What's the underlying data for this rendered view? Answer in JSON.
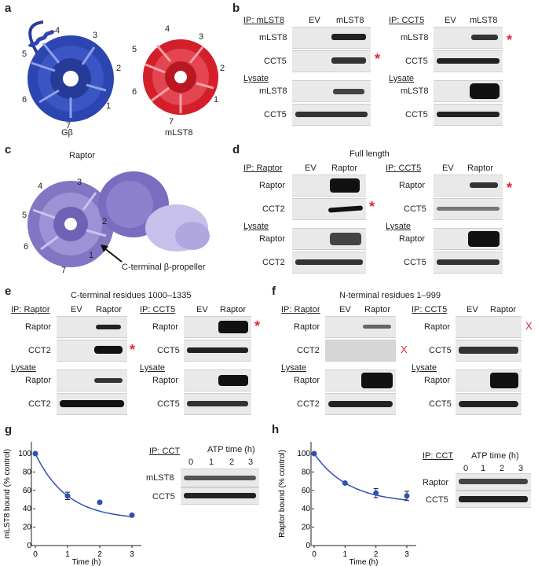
{
  "panels": {
    "a": "a",
    "b": "b",
    "c": "c",
    "d": "d",
    "e": "e",
    "f": "f",
    "g": "g",
    "h": "h"
  },
  "structure_a": {
    "left_label": "Gβ",
    "right_label": "mLST8",
    "left_numbers": [
      "4",
      "3",
      "5",
      "2",
      "6",
      "1",
      "7"
    ],
    "right_numbers": [
      "4",
      "3",
      "5",
      "2",
      "6",
      "1",
      "7"
    ]
  },
  "structure_c": {
    "title": "Raptor",
    "numbers": [
      "4",
      "3",
      "5",
      "2",
      "6",
      "1",
      "7"
    ],
    "arrow_label": "C-terminal β-propeller"
  },
  "panel_b": {
    "left": {
      "ip": "IP: mLST8",
      "lanes": [
        "EV",
        "mLST8"
      ],
      "rows": [
        "mLST8",
        "CCT5"
      ],
      "lysate": "Lysate",
      "lysate_rows": [
        "mLST8",
        "CCT5"
      ]
    },
    "right": {
      "ip": "IP: CCT5",
      "lanes": [
        "EV",
        "mLST8"
      ],
      "rows": [
        "mLST8",
        "CCT5"
      ],
      "lysate": "Lysate",
      "lysate_rows": [
        "mLST8",
        "CCT5"
      ]
    }
  },
  "panel_d": {
    "title": "Full length",
    "left": {
      "ip": "IP: Raptor",
      "lanes": [
        "EV",
        "Raptor"
      ],
      "rows": [
        "Raptor",
        "CCT2"
      ],
      "lysate": "Lysate",
      "lysate_rows": [
        "Raptor",
        "CCT2"
      ]
    },
    "right": {
      "ip": "IP: CCT5",
      "lanes": [
        "EV",
        "Raptor"
      ],
      "rows": [
        "Raptor",
        "CCT5"
      ],
      "lysate": "Lysate",
      "lysate_rows": [
        "Raptor",
        "CCT5"
      ]
    }
  },
  "panel_e": {
    "title": "C-terminal residues 1000–1335",
    "left": {
      "ip": "IP: Raptor",
      "lanes": [
        "EV",
        "Raptor"
      ],
      "rows": [
        "Raptor",
        "CCT2"
      ],
      "lysate": "Lysate",
      "lysate_rows": [
        "Raptor",
        "CCT2"
      ]
    },
    "right": {
      "ip": "IP: CCT5",
      "lanes": [
        "EV",
        "Raptor"
      ],
      "rows": [
        "Raptor",
        "CCT5"
      ],
      "lysate": "Lysate",
      "lysate_rows": [
        "Raptor",
        "CCT5"
      ]
    }
  },
  "panel_f": {
    "title": "N-terminal residues 1–999",
    "left": {
      "ip": "IP: Raptor",
      "lanes": [
        "EV",
        "Raptor"
      ],
      "rows": [
        "Raptor",
        "CCT2"
      ],
      "lysate": "Lysate",
      "lysate_rows": [
        "Raptor",
        "CCT2"
      ]
    },
    "right": {
      "ip": "IP: CCT5",
      "lanes": [
        "EV",
        "Raptor"
      ],
      "rows": [
        "Raptor",
        "CCT5"
      ],
      "lysate": "Lysate",
      "lysate_rows": [
        "Raptor",
        "CCT5"
      ]
    }
  },
  "marks": {
    "star": "*",
    "x": "X"
  },
  "blot_g": {
    "ip": "IP: CCT",
    "header": "ATP time (h)",
    "lanes": [
      "0",
      "1",
      "2",
      "3"
    ],
    "rows": [
      "mLST8",
      "CCT5"
    ]
  },
  "blot_h": {
    "ip": "IP: CCT",
    "header": "ATP time (h)",
    "lanes": [
      "0",
      "1",
      "2",
      "3"
    ],
    "rows": [
      "Raptor",
      "CCT5"
    ]
  },
  "chart_data": [
    {
      "type": "scatter",
      "title": "",
      "xlabel": "Time (h)",
      "ylabel": "mLST8 bound (% control)",
      "x": [
        0,
        1,
        2,
        3
      ],
      "y": [
        100,
        54,
        47,
        33
      ],
      "error": [
        0,
        4,
        0,
        0
      ],
      "fit": "exponential decay",
      "xlim": [
        0,
        3
      ],
      "ylim": [
        0,
        100
      ],
      "xticks": [
        "0",
        "1",
        "2",
        "3"
      ],
      "yticks": [
        "0",
        "20",
        "40",
        "60",
        "80",
        "100"
      ],
      "color": "#2f4fb5",
      "grid": false
    },
    {
      "type": "scatter",
      "title": "",
      "xlabel": "Time (h)",
      "ylabel": "Raptor bound (% control)",
      "x": [
        0,
        1,
        2,
        3
      ],
      "y": [
        100,
        68,
        57,
        54
      ],
      "error": [
        0,
        0,
        5,
        5
      ],
      "fit": "exponential decay",
      "xlim": [
        0,
        3
      ],
      "ylim": [
        0,
        100
      ],
      "xticks": [
        "0",
        "1",
        "2",
        "3"
      ],
      "yticks": [
        "0",
        "20",
        "40",
        "60",
        "80",
        "100"
      ],
      "color": "#2f4fb5",
      "grid": false
    }
  ]
}
